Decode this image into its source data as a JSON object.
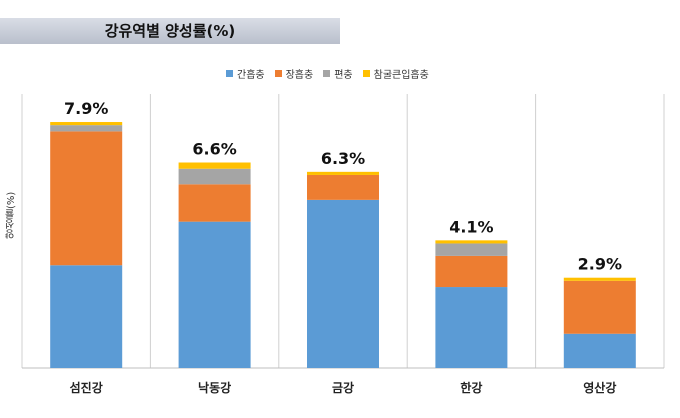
{
  "chart_data": {
    "type": "bar",
    "stacked": true,
    "title": "강유역별 양성률(%)",
    "ylabel": "양성률(%)",
    "xlabel": "",
    "categories": [
      "섬진강",
      "낙동강",
      "금강",
      "한강",
      "영산강"
    ],
    "totals_labels": [
      "7.9%",
      "6.6%",
      "6.3%",
      "4.1%",
      "2.9%"
    ],
    "totals": [
      7.9,
      6.6,
      6.3,
      4.1,
      2.9
    ],
    "series": [
      {
        "name": "간흡충",
        "color": "#5b9bd5",
        "values": [
          3.3,
          4.7,
          5.4,
          2.6,
          1.1
        ]
      },
      {
        "name": "장흡충",
        "color": "#ed7d31",
        "values": [
          4.3,
          1.2,
          0.8,
          1.0,
          1.7
        ]
      },
      {
        "name": "편충",
        "color": "#a5a5a5",
        "values": [
          0.2,
          0.5,
          0.0,
          0.4,
          0.0
        ]
      },
      {
        "name": "참굴큰입흡충",
        "color": "#ffc000",
        "values": [
          0.1,
          0.2,
          0.1,
          0.1,
          0.1
        ]
      }
    ],
    "ylim": [
      0,
      8.8
    ],
    "grid": false,
    "legend_position": "top"
  }
}
